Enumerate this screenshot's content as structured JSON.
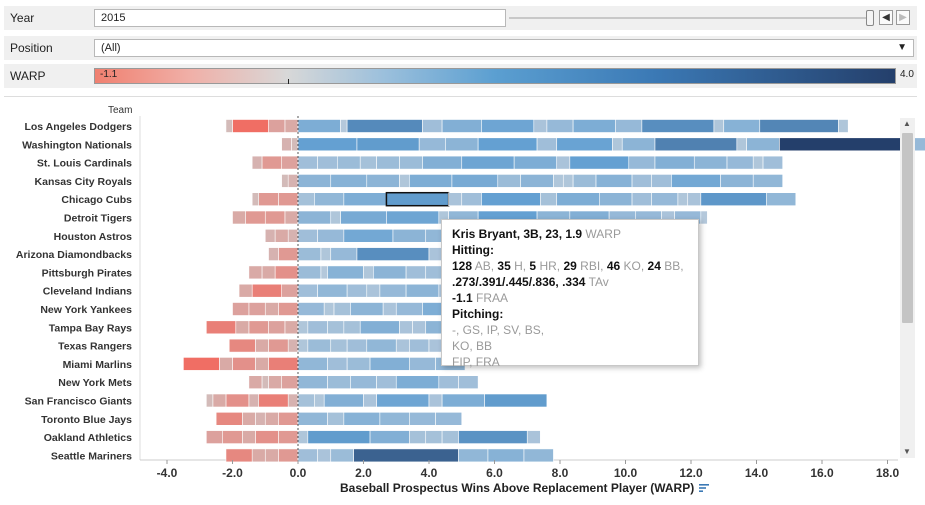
{
  "filters": {
    "year": {
      "label": "Year",
      "value": "2015"
    },
    "position": {
      "label": "Position",
      "value": "(All)"
    },
    "warp": {
      "label": "WARP",
      "min": "-1.1",
      "max": "4.0"
    }
  },
  "icons": {
    "prev": "chevron-left-icon",
    "next": "chevron-right-icon",
    "dropdown": "chevron-down-icon",
    "sort": "sort-descending-icon"
  },
  "chart_data": {
    "type": "bar",
    "stacked": true,
    "orientation": "horizontal",
    "xlabel": "Baseball Prospectus Wins Above Replacement Player (WARP)",
    "team_header": "Team",
    "xlim": [
      -4.5,
      18.5
    ],
    "xticks": [
      "-4.0",
      "-2.0",
      "0.0",
      "2.0",
      "4.0",
      "6.0",
      "8.0",
      "10.0",
      "12.0",
      "14.0",
      "16.0",
      "18.0"
    ],
    "xtick_values": [
      -4,
      -2,
      0,
      2,
      4,
      6,
      8,
      10,
      12,
      14,
      16,
      18
    ],
    "color_scale": {
      "min": -1.1,
      "max": 4.0
    },
    "teams": [
      {
        "name": "Los Angeles Dodgers",
        "neg": [
          -0.4,
          -0.5,
          -1.1,
          -0.2
        ],
        "pos": [
          1.3,
          0.2,
          2.3,
          0.6,
          1.2,
          1.6,
          0.4,
          0.8,
          1.3,
          0.8,
          2.2,
          0.3,
          1.1,
          2.4,
          0.3
        ]
      },
      {
        "name": "Washington Nationals",
        "neg": [
          -0.2,
          -0.3
        ],
        "pos": [
          1.8,
          1.9,
          0.8,
          1.0,
          1.8,
          0.6,
          1.7,
          0.3,
          1.0,
          2.5,
          0.3,
          1.0,
          4.0,
          0.8
        ]
      },
      {
        "name": "St. Louis Cardinals",
        "neg": [
          -0.5,
          -0.6,
          -0.3
        ],
        "pos": [
          0.6,
          0.6,
          0.7,
          0.5,
          0.7,
          0.7,
          1.2,
          1.6,
          1.3,
          0.4,
          1.8,
          0.8,
          1.2,
          1.0,
          0.8,
          0.3,
          0.6
        ]
      },
      {
        "name": "Kansas City Royals",
        "neg": [
          -0.3,
          -0.2
        ],
        "pos": [
          1.0,
          1.1,
          1.0,
          0.3,
          1.3,
          1.4,
          0.7,
          1.0,
          0.3,
          0.3,
          0.7,
          1.1,
          0.6,
          0.6,
          1.5,
          1.0,
          0.9
        ]
      },
      {
        "name": "Chicago Cubs",
        "neg": [
          -0.6,
          -0.6,
          -0.2
        ],
        "pos": [
          0.5,
          0.9,
          1.3,
          1.9,
          0.4,
          0.6,
          1.8,
          0.5,
          1.3,
          1.0,
          0.6,
          0.8,
          0.3,
          0.4,
          2.0,
          0.9
        ]
      },
      {
        "name": "Detroit Tigers",
        "neg": [
          -0.4,
          -0.6,
          -0.6,
          -0.4
        ],
        "pos": [
          1.0,
          0.3,
          1.4,
          1.6,
          0.3,
          0.9,
          1.8,
          1.0,
          1.2,
          0.8,
          0.8,
          0.4,
          0.8,
          0.2
        ]
      },
      {
        "name": "Houston Astros",
        "neg": [
          -0.3,
          -0.4,
          -0.3
        ],
        "pos": [
          0.6,
          0.8,
          1.5,
          1.0,
          0.9,
          0.8
        ]
      },
      {
        "name": "Arizona Diamondbacks",
        "neg": [
          -0.6,
          -0.3
        ],
        "pos": [
          0.7,
          0.3,
          0.8,
          2.2,
          0.4,
          0.6
        ]
      },
      {
        "name": "Pittsburgh Pirates",
        "neg": [
          -0.7,
          -0.4,
          -0.4
        ],
        "pos": [
          0.7,
          0.2,
          1.1,
          0.3,
          1.0,
          0.6,
          0.6
        ]
      },
      {
        "name": "Cleveland Indians",
        "neg": [
          -0.5,
          -0.9,
          -0.4
        ],
        "pos": [
          0.6,
          0.9,
          0.6,
          0.4,
          0.8,
          1.0,
          0.4
        ]
      },
      {
        "name": "New York Yankees",
        "neg": [
          -0.6,
          -0.4,
          -0.5,
          -0.5
        ],
        "pos": [
          0.8,
          0.3,
          0.5,
          1.0,
          0.4,
          0.8,
          1.3
        ]
      },
      {
        "name": "Tampa Bay Rays",
        "neg": [
          -0.4,
          -0.5,
          -0.6,
          -0.4,
          -0.9
        ],
        "pos": [
          0.3,
          0.6,
          0.5,
          0.5,
          1.2,
          0.4,
          0.4,
          1.0
        ]
      },
      {
        "name": "Texas Rangers",
        "neg": [
          -0.3,
          -0.6,
          -0.4,
          -0.8
        ],
        "pos": [
          0.3,
          0.7,
          0.5,
          0.6,
          0.9,
          0.4,
          0.6,
          0.4
        ]
      },
      {
        "name": "Miami Marlins",
        "neg": [
          -0.9,
          -0.4,
          -0.7,
          -0.4,
          -1.1
        ],
        "pos": [
          0.9,
          0.6,
          0.7,
          1.2,
          0.8,
          0.9
        ]
      },
      {
        "name": "New York Mets",
        "neg": [
          -0.5,
          -0.4,
          -0.2,
          -0.4
        ],
        "pos": [
          0.9,
          0.7,
          0.8,
          0.6,
          1.3,
          0.6,
          0.6
        ]
      },
      {
        "name": "San Francisco Giants",
        "neg": [
          -0.3,
          -0.9,
          -0.3,
          -0.7,
          -0.4,
          -0.2
        ],
        "pos": [
          0.5,
          0.3,
          1.2,
          0.4,
          1.6,
          0.4,
          1.3,
          1.9
        ]
      },
      {
        "name": "Toronto Blue Jays",
        "neg": [
          -0.6,
          -0.4,
          -0.3,
          -0.4,
          -0.8
        ],
        "pos": [
          0.9,
          0.5,
          1.1,
          0.9,
          0.8,
          0.8
        ]
      },
      {
        "name": "Oakland Athletics",
        "neg": [
          -0.6,
          -0.7,
          -0.4,
          -0.6,
          -0.5
        ],
        "pos": [
          0.3,
          1.9,
          1.2,
          0.5,
          0.5,
          0.5,
          2.1,
          0.4
        ]
      },
      {
        "name": "Seattle Mariners",
        "neg": [
          -0.6,
          -0.4,
          -0.4,
          -0.8
        ],
        "pos": [
          0.6,
          0.4,
          0.7,
          3.2,
          0.9,
          1.1,
          0.9
        ]
      }
    ],
    "highlighted": {
      "team_index": 4,
      "segment_index": 3
    }
  },
  "tooltip": {
    "name": "Kris Bryant, 3B, 23, ",
    "warp_value": "1.9",
    "warp_label": " WARP",
    "hitting_header": "Hitting:",
    "hit_line1": [
      [
        "128",
        " AB, "
      ],
      [
        "35",
        " H, "
      ],
      [
        "5",
        " HR, "
      ],
      [
        "29",
        " RBI, "
      ],
      [
        "46",
        " KO, "
      ],
      [
        "24",
        " BB,"
      ]
    ],
    "hit_line2_val": ".273/.391/.445/.836, .334",
    "hit_line2_unit": " TAv",
    "fraa_val": "-1.1",
    "fraa_unit": " FRAA",
    "pitching_header": "Pitching:",
    "pitch_line1": "-,  GS,  IP,  SV,  BS,",
    "pitch_line2": "  KO,  BB",
    "pitch_line3": "  FIP,  FRA"
  }
}
